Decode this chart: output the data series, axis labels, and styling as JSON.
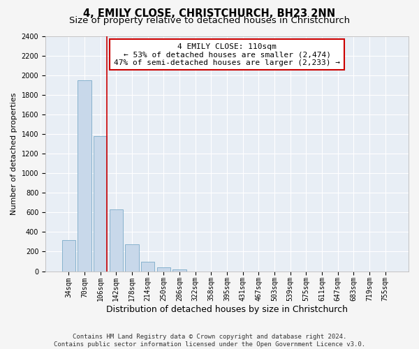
{
  "title": "4, EMILY CLOSE, CHRISTCHURCH, BH23 2NN",
  "subtitle": "Size of property relative to detached houses in Christchurch",
  "xlabel": "Distribution of detached houses by size in Christchurch",
  "ylabel": "Number of detached properties",
  "categories": [
    "34sqm",
    "70sqm",
    "106sqm",
    "142sqm",
    "178sqm",
    "214sqm",
    "250sqm",
    "286sqm",
    "322sqm",
    "358sqm",
    "395sqm",
    "431sqm",
    "467sqm",
    "503sqm",
    "539sqm",
    "575sqm",
    "611sqm",
    "647sqm",
    "683sqm",
    "719sqm",
    "755sqm"
  ],
  "values": [
    320,
    1950,
    1380,
    630,
    275,
    95,
    40,
    20,
    0,
    0,
    0,
    0,
    0,
    0,
    0,
    0,
    0,
    0,
    0,
    0,
    0
  ],
  "bar_color": "#c8d8ea",
  "bar_edge_color": "#7aaac8",
  "plot_bg_color": "#e8eef5",
  "fig_bg_color": "#f5f5f5",
  "grid_color": "#ffffff",
  "annotation_text": "4 EMILY CLOSE: 110sqm\n← 53% of detached houses are smaller (2,474)\n47% of semi-detached houses are larger (2,233) →",
  "annotation_box_facecolor": "#ffffff",
  "annotation_box_edgecolor": "#cc0000",
  "vline_color": "#cc0000",
  "vline_x_idx": 2,
  "ylim": [
    0,
    2400
  ],
  "yticks": [
    0,
    200,
    400,
    600,
    800,
    1000,
    1200,
    1400,
    1600,
    1800,
    2000,
    2200,
    2400
  ],
  "footer_text": "Contains HM Land Registry data © Crown copyright and database right 2024.\nContains public sector information licensed under the Open Government Licence v3.0.",
  "title_fontsize": 10.5,
  "subtitle_fontsize": 9.5,
  "xlabel_fontsize": 9,
  "ylabel_fontsize": 8,
  "tick_fontsize": 7,
  "annotation_fontsize": 8,
  "footer_fontsize": 6.5
}
